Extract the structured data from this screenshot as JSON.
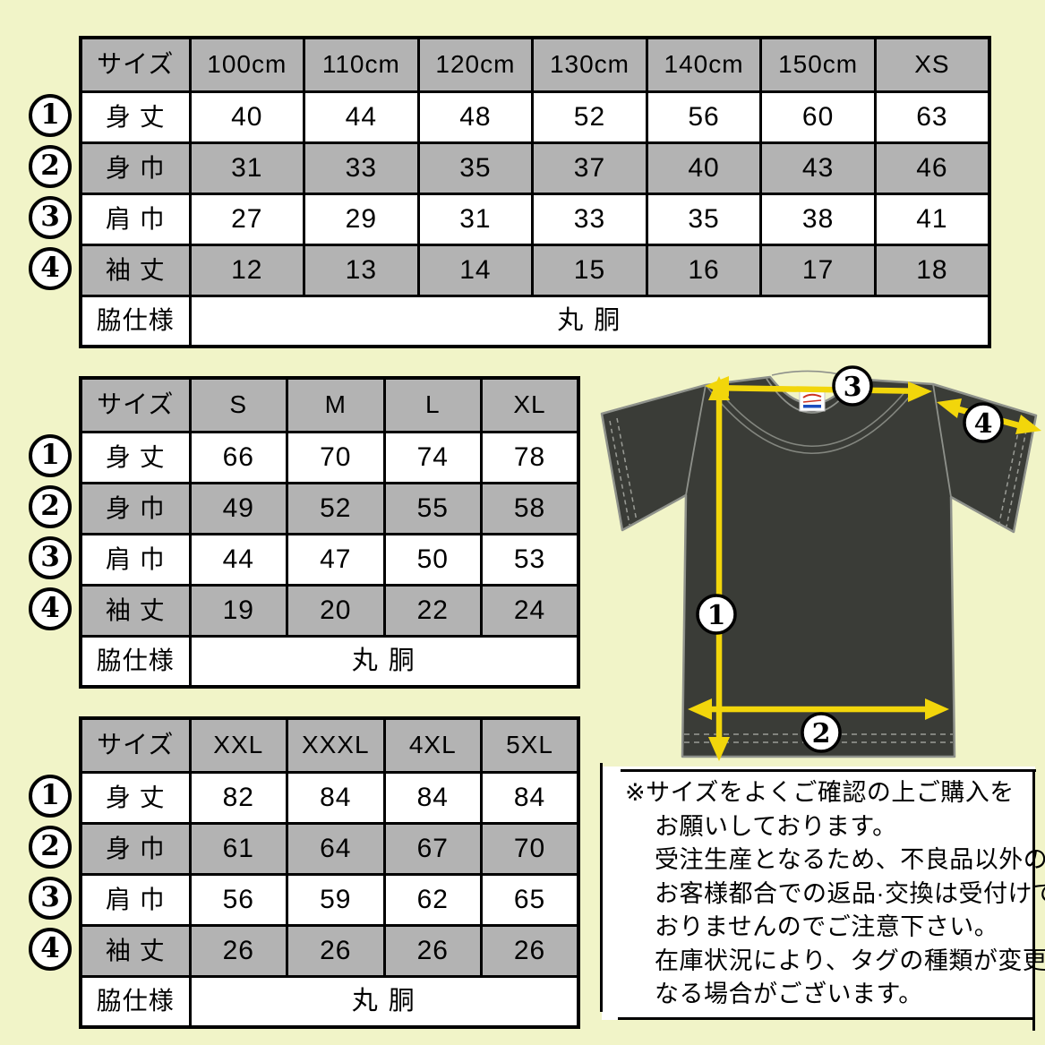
{
  "colors": {
    "background": "#f1f4c8",
    "cell_gray": "#b3b3b3",
    "cell_white": "#ffffff",
    "table_border": "#000000",
    "shirt_body": "#3a3c37",
    "shirt_outline": "#8e918b",
    "arrow_yellow": "#f2d60b",
    "tag_red": "#cc3322",
    "tag_blue": "#1a4dbf"
  },
  "markers": [
    "1",
    "2",
    "3",
    "4"
  ],
  "tables": [
    {
      "name": "kids-size-table",
      "columns": [
        "サイズ",
        "100cm",
        "110cm",
        "120cm",
        "130cm",
        "140cm",
        "150cm",
        "XS"
      ],
      "rows": [
        {
          "label": "身 丈",
          "values": [
            "40",
            "44",
            "48",
            "52",
            "56",
            "60",
            "63"
          ]
        },
        {
          "label": "身 巾",
          "values": [
            "31",
            "33",
            "35",
            "37",
            "40",
            "43",
            "46"
          ]
        },
        {
          "label": "肩 巾",
          "values": [
            "27",
            "29",
            "31",
            "33",
            "35",
            "38",
            "41"
          ]
        },
        {
          "label": "袖 丈",
          "values": [
            "12",
            "13",
            "14",
            "15",
            "16",
            "17",
            "18"
          ]
        }
      ],
      "footer": {
        "label": "脇仕様",
        "value": "丸 胴"
      }
    },
    {
      "name": "adult-size-table",
      "columns": [
        "サイズ",
        "S",
        "M",
        "L",
        "XL"
      ],
      "rows": [
        {
          "label": "身 丈",
          "values": [
            "66",
            "70",
            "74",
            "78"
          ]
        },
        {
          "label": "身 巾",
          "values": [
            "49",
            "52",
            "55",
            "58"
          ]
        },
        {
          "label": "肩 巾",
          "values": [
            "44",
            "47",
            "50",
            "53"
          ]
        },
        {
          "label": "袖 丈",
          "values": [
            "19",
            "20",
            "22",
            "24"
          ]
        }
      ],
      "footer": {
        "label": "脇仕様",
        "value": "丸 胴"
      }
    },
    {
      "name": "plus-size-table",
      "columns": [
        "サイズ",
        "XXL",
        "XXXL",
        "4XL",
        "5XL"
      ],
      "rows": [
        {
          "label": "身 丈",
          "values": [
            "82",
            "84",
            "84",
            "84"
          ]
        },
        {
          "label": "身 巾",
          "values": [
            "61",
            "64",
            "67",
            "70"
          ]
        },
        {
          "label": "肩 巾",
          "values": [
            "56",
            "59",
            "62",
            "65"
          ]
        },
        {
          "label": "袖 丈",
          "values": [
            "26",
            "26",
            "26",
            "26"
          ]
        }
      ],
      "footer": {
        "label": "脇仕様",
        "value": "丸 胴"
      }
    }
  ],
  "diagram": {
    "marker_1": "1",
    "marker_2": "2",
    "marker_3": "3",
    "marker_4": "4"
  },
  "notice": {
    "lines": [
      "※サイズをよくご確認の上ご購入を",
      "お願いしております。",
      "受注生産となるため、不良品以外の",
      "お客様都合での返品·交換は受付けて",
      "おりませんのでご注意下さい。",
      "在庫状況により、タグの種類が変更に",
      "なる場合がございます。"
    ]
  }
}
